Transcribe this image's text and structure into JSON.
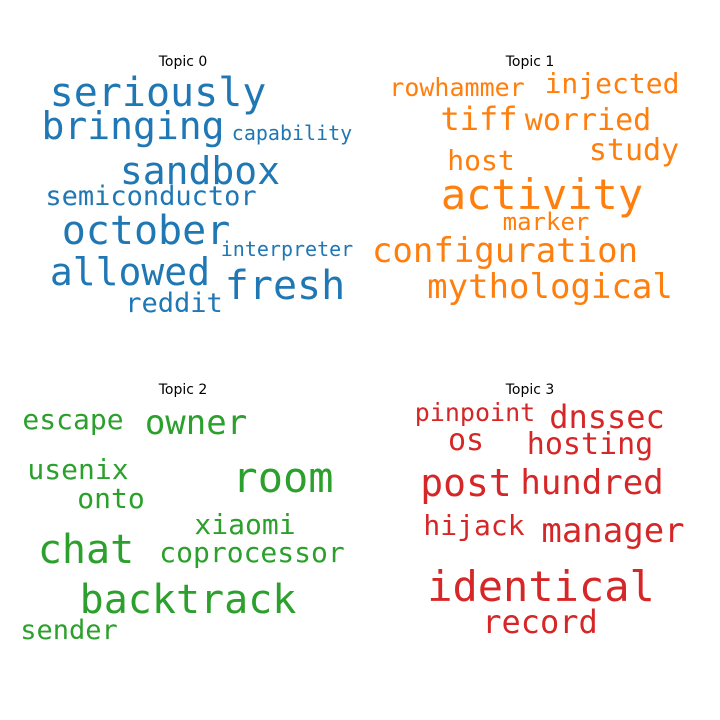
{
  "chart_data": [
    {
      "type": "wordcloud",
      "title": "Topic 0",
      "color": "#1f77b4",
      "words": [
        "seriously",
        "bringing",
        "capability",
        "sandbox",
        "semiconductor",
        "october",
        "interpreter",
        "allowed",
        "fresh",
        "reddit"
      ]
    },
    {
      "type": "wordcloud",
      "title": "Topic 1",
      "color": "#ff7f0e",
      "words": [
        "rowhammer",
        "injected",
        "tiff",
        "worried",
        "study",
        "host",
        "activity",
        "marker",
        "configuration",
        "mythological"
      ]
    },
    {
      "type": "wordcloud",
      "title": "Topic 2",
      "color": "#2ca02c",
      "words": [
        "escape",
        "owner",
        "usenix",
        "room",
        "onto",
        "xiaomi",
        "chat",
        "coprocessor",
        "backtrack",
        "sender"
      ]
    },
    {
      "type": "wordcloud",
      "title": "Topic 3",
      "color": "#d62728",
      "words": [
        "pinpoint",
        "dnssec",
        "os",
        "hosting",
        "post",
        "hundred",
        "hijack",
        "manager",
        "identical",
        "record"
      ]
    }
  ]
}
